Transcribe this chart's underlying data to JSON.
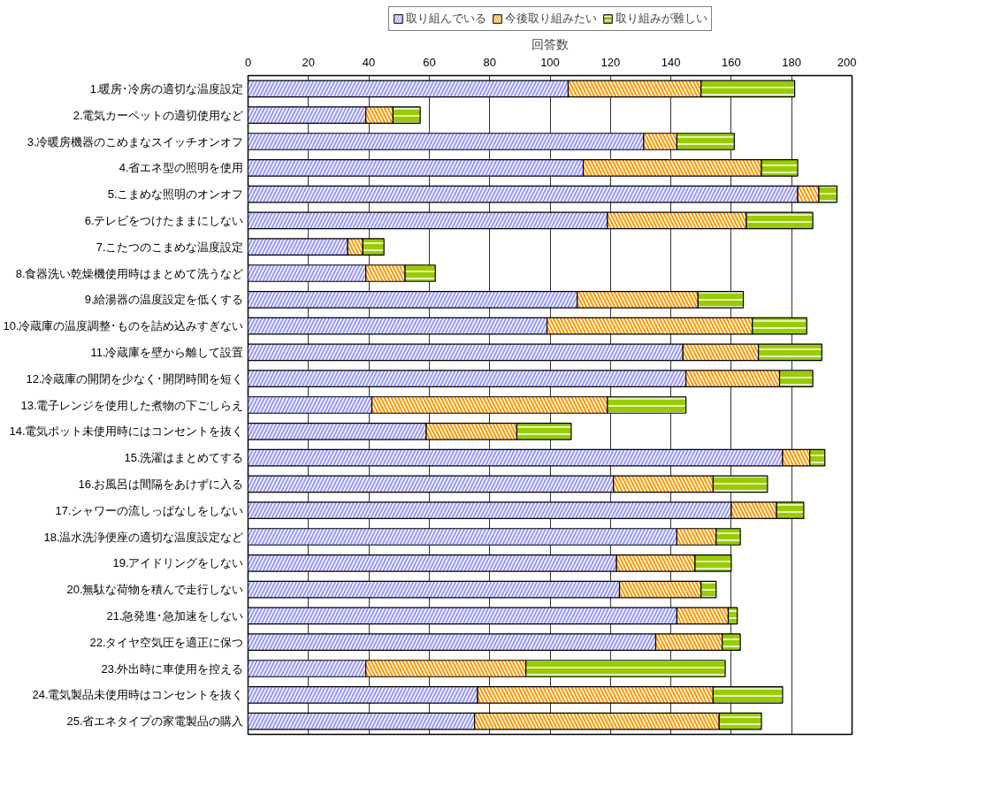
{
  "chart_data": {
    "type": "bar",
    "orientation": "horizontal",
    "stacked": true,
    "xlabel": "回答数",
    "categories": [
      "1.暖房･冷房の適切な温度設定",
      "2.電気カーペットの適切使用など",
      "3.冷暖房機器のこめまなスイッチオンオフ",
      "4.省エネ型の照明を使用",
      "5.こまめな照明のオンオフ",
      "6.テレビをつけたままにしない",
      "7.こたつのこまめな温度設定",
      "8.食器洗い乾燥機使用時はまとめて洗うなど",
      "9.給湯器の温度設定を低くする",
      "10.冷蔵庫の温度調整･ものを詰め込みすぎない",
      "11.冷蔵庫を壁から離して設置",
      "12.冷蔵庫の開閉を少なく･開閉時間を短く",
      "13.電子レンジを使用した煮物の下ごしらえ",
      "14.電気ポット未使用時にはコンセントを抜く",
      "15.洗濯はまとめてする",
      "16.お風呂は間隔をあけずに入る",
      "17.シャワーの流しっぱなしをしない",
      "18.温水洗浄便座の適切な温度設定など",
      "19.アイドリングをしない",
      "20.無駄な荷物を積んで走行しない",
      "21.急発進･急加速をしない",
      "22.タイヤ空気圧を適正に保つ",
      "23.外出時に車使用を控える",
      "24.電気製品未使用時はコンセントを抜く",
      "25.省エネタイプの家電製品の購入"
    ],
    "series": [
      {
        "name": "取り組んでいる",
        "color": "#9999ff",
        "values": [
          106,
          39,
          131,
          111,
          182,
          119,
          33,
          39,
          109,
          99,
          144,
          145,
          41,
          59,
          177,
          121,
          160,
          142,
          122,
          123,
          142,
          135,
          39,
          76,
          75
        ]
      },
      {
        "name": "今後取り組みたい",
        "color": "#ff9900",
        "values": [
          44,
          9,
          11,
          59,
          7,
          46,
          5,
          13,
          40,
          68,
          25,
          31,
          78,
          30,
          9,
          33,
          15,
          13,
          26,
          27,
          17,
          22,
          53,
          78,
          81
        ]
      },
      {
        "name": "取り組みが難しい",
        "color": "#99cc00",
        "values": [
          31,
          9,
          19,
          12,
          6,
          22,
          7,
          10,
          15,
          18,
          21,
          11,
          26,
          18,
          5,
          18,
          9,
          8,
          12,
          5,
          3,
          6,
          66,
          23,
          14
        ]
      }
    ],
    "xlim": [
      0,
      200
    ],
    "xticks": [
      0,
      20,
      40,
      60,
      80,
      100,
      120,
      140,
      160,
      180,
      200
    ],
    "grid": "x",
    "legend": "top"
  }
}
